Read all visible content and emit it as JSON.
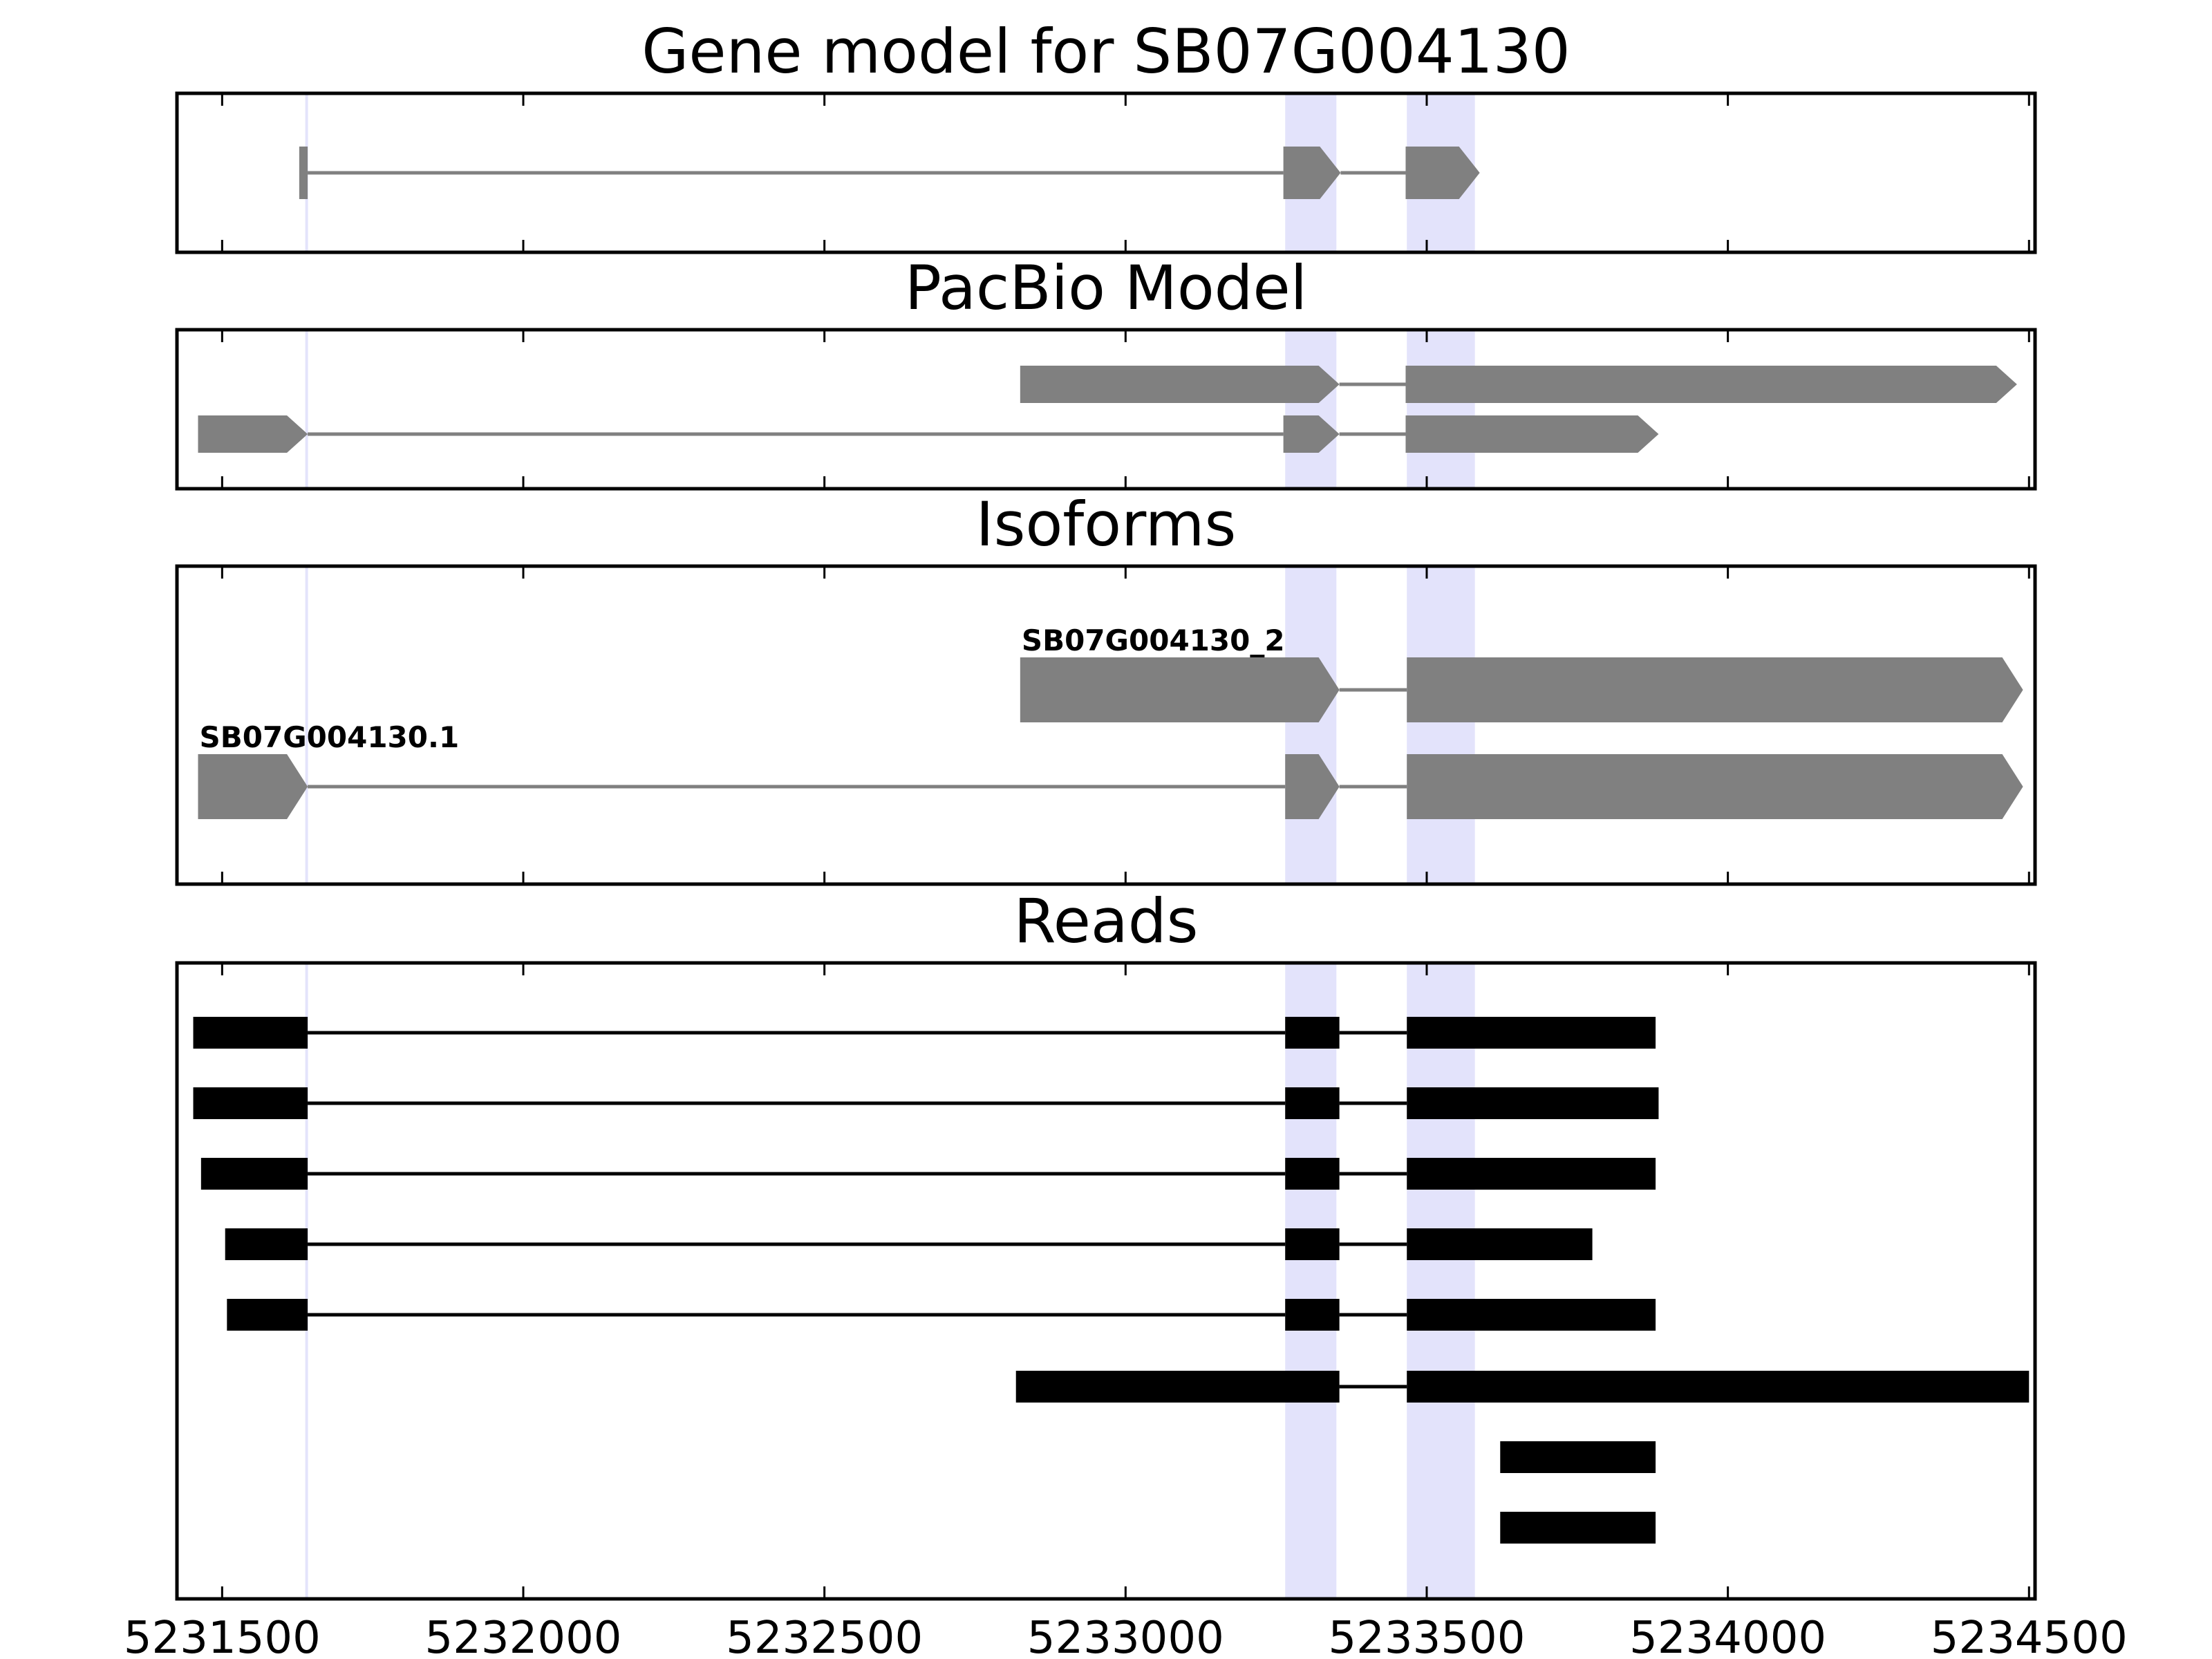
{
  "chart_data": {
    "type": "gene-model-tracks",
    "xlim": [
      5231425,
      5234510
    ],
    "x_ticks": [
      5231500,
      5232000,
      5232500,
      5233000,
      5233500,
      5234000,
      5234500
    ],
    "x_tick_labels": [
      "5231500",
      "5232000",
      "5232500",
      "5233000",
      "5233500",
      "5234000",
      "5234500"
    ],
    "highlight_color": "#e3e3fb",
    "gene_color": "#808080",
    "read_color": "#000000",
    "highlight_regions": [
      [
        5231638,
        5231642
      ],
      [
        5233265,
        5233350
      ],
      [
        5233467,
        5233580
      ]
    ],
    "panels": [
      {
        "title": "Gene model for SB07G004130",
        "tracks": [
          {
            "label": "",
            "arrow": true,
            "exons": [
              [
                5231628,
                5231642
              ],
              [
                5233262,
                5233357
              ],
              [
                5233465,
                5233588
              ]
            ]
          }
        ]
      },
      {
        "title": "PacBio Model",
        "tracks": [
          {
            "label": "",
            "arrow": true,
            "exons": [
              [
                5232825,
                5233355
              ],
              [
                5233465,
                5234480
              ]
            ]
          },
          {
            "label": "",
            "arrow": true,
            "exons": [
              [
                5231460,
                5231642
              ],
              [
                5233262,
                5233355
              ],
              [
                5233465,
                5233885
              ]
            ]
          }
        ]
      },
      {
        "title": "Isoforms",
        "tracks": [
          {
            "label": "SB07G004130_2",
            "arrow": true,
            "exons": [
              [
                5232825,
                5233355
              ],
              [
                5233467,
                5234490
              ]
            ]
          },
          {
            "label": "SB07G004130.1",
            "arrow": true,
            "exons": [
              [
                5231460,
                5231642
              ],
              [
                5233265,
                5233355
              ],
              [
                5233467,
                5234490
              ]
            ]
          }
        ]
      },
      {
        "title": "Reads",
        "tracks": [
          {
            "exons": [
              [
                5231452,
                5231642
              ],
              [
                5233265,
                5233355
              ],
              [
                5233467,
                5233880
              ]
            ]
          },
          {
            "exons": [
              [
                5231452,
                5231642
              ],
              [
                5233265,
                5233355
              ],
              [
                5233467,
                5233885
              ]
            ]
          },
          {
            "exons": [
              [
                5231465,
                5231642
              ],
              [
                5233265,
                5233355
              ],
              [
                5233467,
                5233880
              ]
            ]
          },
          {
            "exons": [
              [
                5231505,
                5231642
              ],
              [
                5233265,
                5233355
              ],
              [
                5233467,
                5233775
              ]
            ]
          },
          {
            "exons": [
              [
                5231508,
                5231642
              ],
              [
                5233265,
                5233355
              ],
              [
                5233467,
                5233880
              ]
            ]
          },
          {
            "exons": [
              [
                5232818,
                5233355
              ],
              [
                5233467,
                5234500
              ]
            ]
          },
          {
            "exons": [
              [
                5233622,
                5233880
              ]
            ]
          },
          {
            "exons": [
              [
                5233622,
                5233880
              ]
            ]
          }
        ]
      }
    ]
  }
}
